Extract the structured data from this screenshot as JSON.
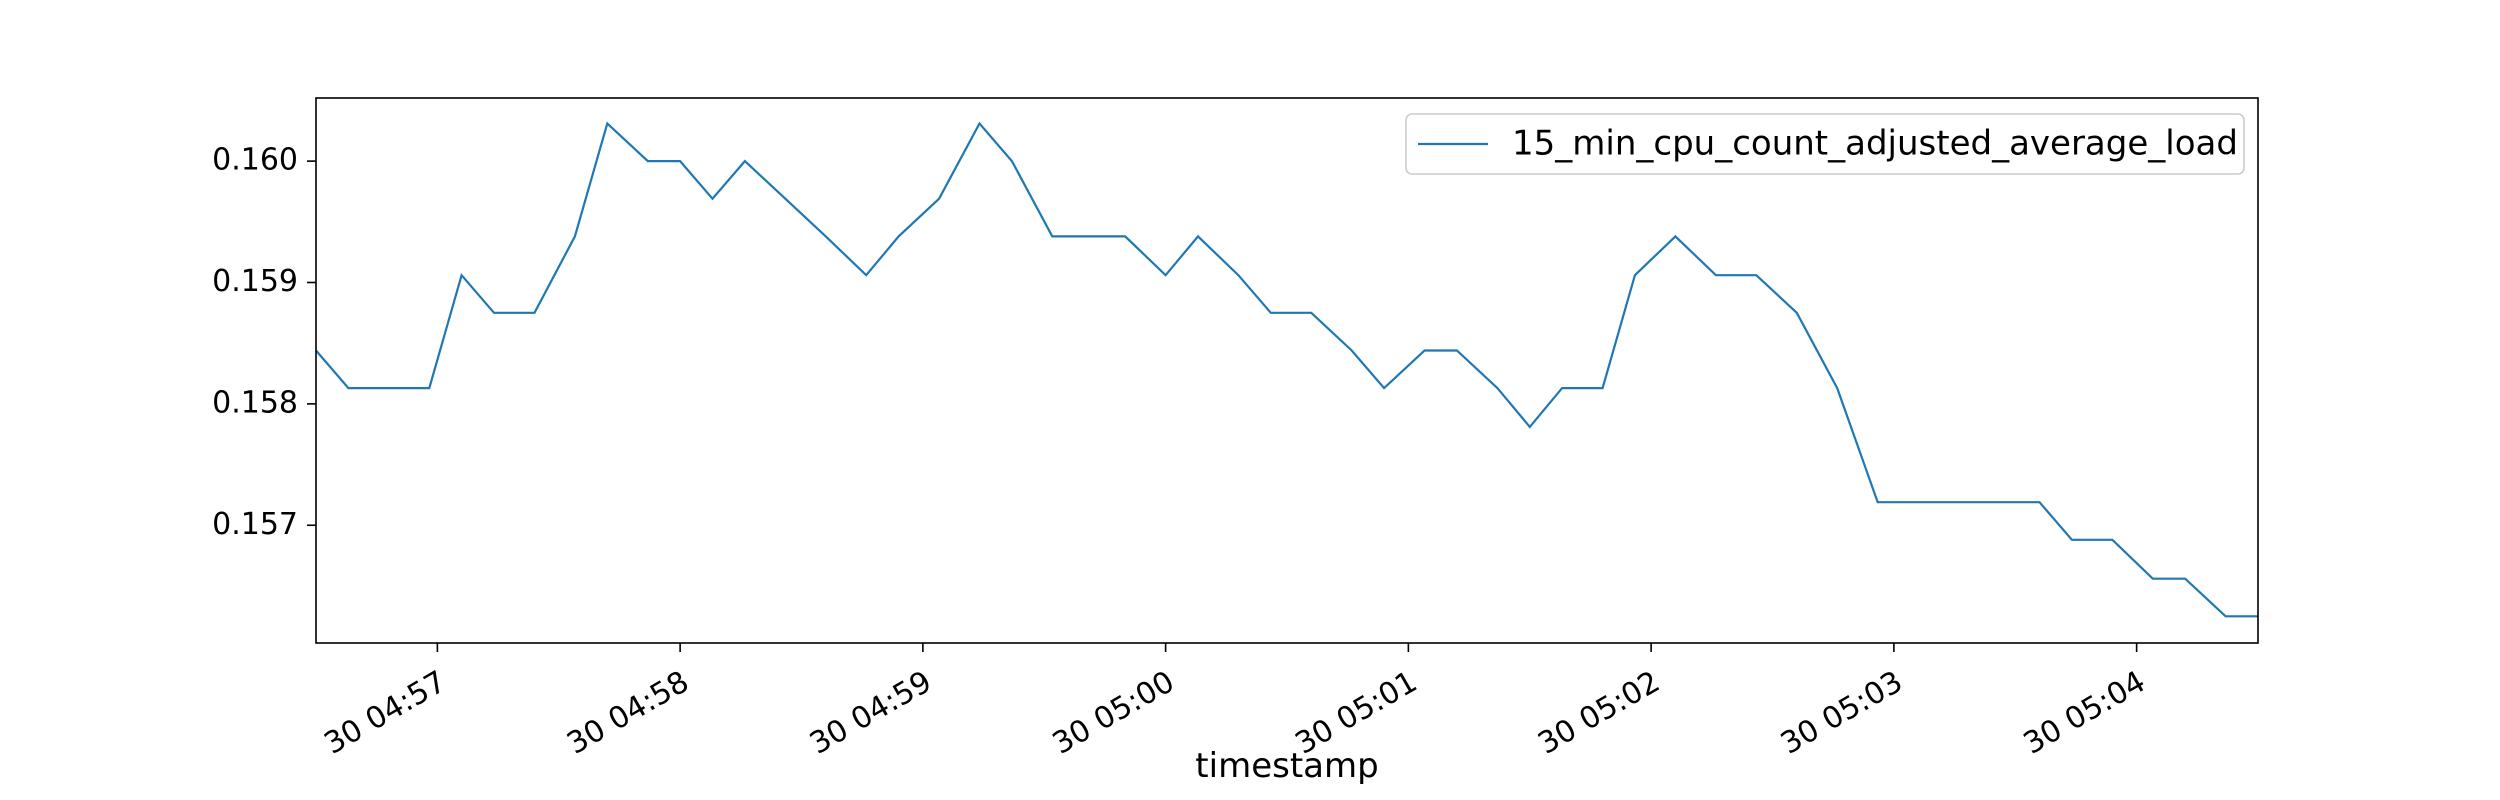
{
  "chart_data": {
    "type": "line",
    "title": "",
    "xlabel": "timestamp",
    "ylabel": "",
    "x_ticks": [
      "30 04:57",
      "30 04:58",
      "30 04:59",
      "30 05:00",
      "30 05:01",
      "30 05:02",
      "30 05:03",
      "30 05:04"
    ],
    "y_ticks": [
      "0.157",
      "0.158",
      "0.159",
      "0.160"
    ],
    "ylim": [
      0.15603,
      0.16052
    ],
    "xlim": [
      "30 04:56:30",
      "30 05:04:30"
    ],
    "grid": false,
    "legend": "top-right",
    "series": [
      {
        "name": "15_min_cpu_count_adjusted_average_load",
        "color": "#1f77b4",
        "x": [
          "30 04:56:30",
          "30 04:56:38",
          "30 04:56:48",
          "30 04:56:58",
          "30 04:57:06",
          "30 04:57:14",
          "30 04:57:24",
          "30 04:57:34",
          "30 04:57:42",
          "30 04:57:52",
          "30 04:58:00",
          "30 04:58:08",
          "30 04:58:16",
          "30 04:58:26",
          "30 04:58:36",
          "30 04:58:46",
          "30 04:58:54",
          "30 04:59:04",
          "30 04:59:14",
          "30 04:59:22",
          "30 04:59:32",
          "30 04:59:42",
          "30 04:59:50",
          "30 05:00:00",
          "30 05:00:08",
          "30 05:00:18",
          "30 05:00:26",
          "30 05:00:36",
          "30 05:00:46",
          "30 05:00:54",
          "30 05:01:04",
          "30 05:01:12",
          "30 05:01:22",
          "30 05:01:30",
          "30 05:01:38",
          "30 05:01:48",
          "30 05:01:56",
          "30 05:02:06",
          "30 05:02:16",
          "30 05:02:26",
          "30 05:02:36",
          "30 05:02:46",
          "30 05:02:56",
          "30 05:03:06",
          "30 05:03:16",
          "30 05:03:26",
          "30 05:03:36",
          "30 05:03:44",
          "30 05:03:54",
          "30 05:04:04",
          "30 05:04:12",
          "30 05:04:22",
          "30 05:04:30"
        ],
        "y": [
          0.15844,
          0.15813,
          0.15813,
          0.15813,
          0.15906,
          0.15875,
          0.15875,
          0.15938,
          0.16031,
          0.16,
          0.16,
          0.15969,
          0.16,
          0.15969,
          0.15938,
          0.15906,
          0.15938,
          0.15969,
          0.16031,
          0.16,
          0.15938,
          0.15938,
          0.15938,
          0.15906,
          0.15938,
          0.15906,
          0.15875,
          0.15875,
          0.15844,
          0.15813,
          0.15844,
          0.15844,
          0.15813,
          0.15781,
          0.15813,
          0.15813,
          0.15906,
          0.15938,
          0.15906,
          0.15906,
          0.15875,
          0.15813,
          0.15719,
          0.15719,
          0.15719,
          0.15719,
          0.15719,
          0.15688,
          0.15688,
          0.15656,
          0.15656,
          0.15625,
          0.15625
        ]
      }
    ]
  }
}
